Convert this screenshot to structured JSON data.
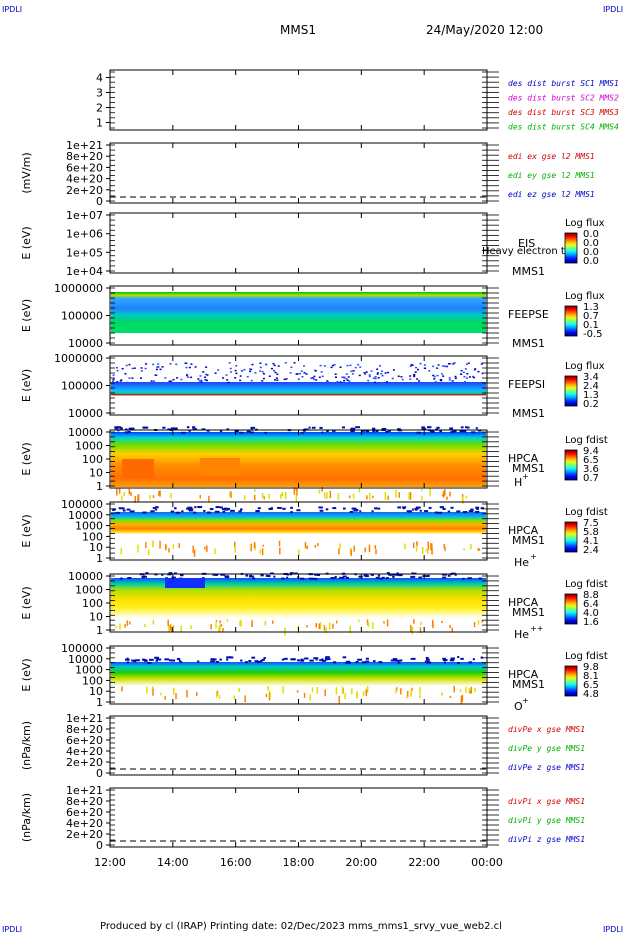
{
  "corner_tag": "IPDLI",
  "header": {
    "title": "MMS1",
    "datetime": "24/May/2020 12:00"
  },
  "footer": {
    "text": "Produced by cl (IRAP)    Printing date: 02/Dec/2023    mms_mms1_srvy_vue_web2.cl"
  },
  "x_axis": {
    "ticks": [
      "12:00",
      "14:00",
      "16:00",
      "18:00",
      "20:00",
      "22:00",
      "00:00"
    ]
  },
  "chart_data": [
    {
      "type": "line",
      "panel": "des-dist",
      "ylim": [
        0.5,
        4.5
      ],
      "yticks": [
        "1",
        "2",
        "3",
        "4"
      ],
      "ylabel": "",
      "series": [
        {
          "name": "des dist burst SC1 MMS1",
          "color": "#0000c8"
        },
        {
          "name": "des dist burst SC2 MMS2",
          "color": "#d400d4"
        },
        {
          "name": "des dist burst SC3 MMS3",
          "color": "#d40000"
        },
        {
          "name": "des dist burst SC4 MMS4",
          "color": "#00b000"
        }
      ]
    },
    {
      "type": "line",
      "panel": "edi",
      "ylabel": "(mV/m)",
      "yticks": [
        "1e+21",
        "8e+20",
        "6e+20",
        "4e+20",
        "2e+20",
        "0"
      ],
      "series": [
        {
          "name": "edi ex gse l2 MMS1",
          "color": "#d40000"
        },
        {
          "name": "edi ey gse l2 MMS1",
          "color": "#00b000"
        },
        {
          "name": "edi ez gse l2 MMS1",
          "color": "#0000c8"
        }
      ]
    },
    {
      "type": "heatmap",
      "panel": "eis",
      "ylabel": "E (eV)",
      "yticks": [
        "1e+07",
        "1e+06",
        "1e+05",
        "1e+04"
      ],
      "log": true,
      "name": "EIS",
      "note": "Heavy electron to",
      "spacecraft": "MMS1",
      "colorbar": {
        "title": "Log flux",
        "labels": [
          "0.0",
          "0.0",
          "0.0",
          "0.0"
        ]
      }
    },
    {
      "type": "heatmap",
      "panel": "feepse",
      "ylabel": "E (eV)",
      "yticks": [
        "1000000",
        "100000",
        "10000"
      ],
      "log": true,
      "name": "FEEPSE",
      "spacecraft": "MMS1",
      "colorbar": {
        "title": "Log flux",
        "labels": [
          "1.3",
          "0.7",
          "0.1",
          "-0.5"
        ]
      }
    },
    {
      "type": "heatmap",
      "panel": "feepsi",
      "ylabel": "E (eV)",
      "yticks": [
        "1000000",
        "100000",
        "10000"
      ],
      "log": true,
      "name": "FEEPSI",
      "spacecraft": "MMS1",
      "colorbar": {
        "title": "Log flux",
        "labels": [
          "3.4",
          "2.4",
          "1.3",
          "0.2"
        ]
      }
    },
    {
      "type": "heatmap",
      "panel": "hpca-h",
      "ylabel": "E (eV)",
      "yticks": [
        "10000",
        "1000",
        "100",
        "10",
        "1"
      ],
      "log": true,
      "name": "HPCA",
      "spacecraft": "MMS1",
      "species": "H",
      "charge": "+",
      "colorbar": {
        "title": "Log fdist",
        "labels": [
          "9.4",
          "6.5",
          "3.6",
          "0.7"
        ]
      }
    },
    {
      "type": "heatmap",
      "panel": "hpca-he",
      "ylabel": "E (eV)",
      "yticks": [
        "100000",
        "10000",
        "1000",
        "100",
        "10",
        "1"
      ],
      "log": true,
      "name": "HPCA",
      "spacecraft": "MMS1",
      "species": "He",
      "charge": "+",
      "colorbar": {
        "title": "Log fdist",
        "labels": [
          "7.5",
          "5.8",
          "4.1",
          "2.4"
        ]
      }
    },
    {
      "type": "heatmap",
      "panel": "hpca-hepp",
      "ylabel": "E (eV)",
      "yticks": [
        "10000",
        "1000",
        "100",
        "10",
        "1"
      ],
      "log": true,
      "name": "HPCA",
      "spacecraft": "MMS1",
      "species": "He",
      "charge": "++",
      "colorbar": {
        "title": "Log fdist",
        "labels": [
          "8.8",
          "6.4",
          "4.0",
          "1.6"
        ]
      }
    },
    {
      "type": "heatmap",
      "panel": "hpca-o",
      "ylabel": "E (eV)",
      "yticks": [
        "100000",
        "10000",
        "1000",
        "100",
        "10",
        "1"
      ],
      "log": true,
      "name": "HPCA",
      "spacecraft": "MMS1",
      "species": "O",
      "charge": "+",
      "colorbar": {
        "title": "Log fdist",
        "labels": [
          "9.8",
          "8.1",
          "6.5",
          "4.8"
        ]
      }
    },
    {
      "type": "line",
      "panel": "divpe",
      "ylabel": "(nPa/km)",
      "yticks": [
        "1e+21",
        "8e+20",
        "6e+20",
        "4e+20",
        "2e+20",
        "0"
      ],
      "series": [
        {
          "name": "divPe x gse MMS1",
          "color": "#d40000"
        },
        {
          "name": "divPe y gse MMS1",
          "color": "#00b000"
        },
        {
          "name": "divPe z gse MMS1",
          "color": "#0000c8"
        }
      ]
    },
    {
      "type": "line",
      "panel": "divpi",
      "ylabel": "(nPa/km)",
      "yticks": [
        "1e+21",
        "8e+20",
        "6e+20",
        "4e+20",
        "2e+20",
        "0"
      ],
      "series": [
        {
          "name": "divPi x gse MMS1",
          "color": "#d40000"
        },
        {
          "name": "divPi y gse MMS1",
          "color": "#00b000"
        },
        {
          "name": "divPi z gse MMS1",
          "color": "#0000c8"
        }
      ]
    }
  ]
}
